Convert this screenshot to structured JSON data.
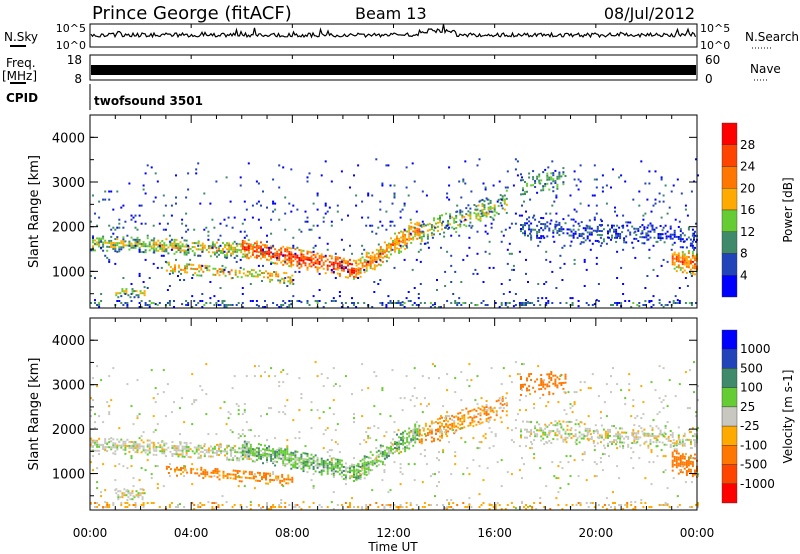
{
  "header": {
    "station": "Prince George (fitACF)",
    "beam": "Beam 13",
    "date": "08/Jul/2012"
  },
  "noise_panel": {
    "left_label": "N.Sky",
    "right_label": "N.Search",
    "left_ticks": [
      "10^5",
      "10^0"
    ],
    "right_ticks": [
      "10^5",
      "10^0"
    ]
  },
  "freq_panel": {
    "left_label": "Freq.",
    "left_unit": "[MHz]",
    "right_label": "Nave",
    "left_ticks": [
      "18",
      "8"
    ],
    "right_ticks": [
      "60",
      "0"
    ]
  },
  "cpid_panel": {
    "label": "CPID",
    "value": "twofsound 3501"
  },
  "chart_data": {
    "type": "heatmap",
    "xlabel": "Time UT",
    "x_ticks": [
      "00:00",
      "04:00",
      "08:00",
      "12:00",
      "16:00",
      "20:00",
      "00:00"
    ],
    "xlim_hours": [
      0,
      24
    ],
    "ylabel": "Slant Range [km]",
    "y_ticks": [
      1000,
      2000,
      3000,
      4000
    ],
    "ylim_km": [
      180,
      4500
    ],
    "panels": [
      {
        "name": "power",
        "colorbar_label": "Power [dB]",
        "colorbar_ticks": [
          "4",
          "8",
          "12",
          "16",
          "20",
          "24",
          "28"
        ],
        "bins": [
          0,
          4,
          8,
          12,
          16,
          20,
          24,
          28,
          32
        ],
        "colors": [
          "#0000ff",
          "#2244bb",
          "#3f8a6a",
          "#66cc33",
          "#ffaa00",
          "#ff7700",
          "#ff4400",
          "#ff0000"
        ]
      },
      {
        "name": "velocity",
        "colorbar_label": "Velocity [m s-1]",
        "colorbar_ticks": [
          "1000",
          "500",
          "100",
          "25",
          "-25",
          "-100",
          "-500",
          "-1000"
        ],
        "bins": [
          1500,
          1000,
          500,
          100,
          25,
          -25,
          -100,
          -500,
          -1000,
          -1500
        ],
        "colors": [
          "#0000ff",
          "#2244bb",
          "#3f8a6a",
          "#66cc33",
          "#c8c8c0",
          "#ffaa00",
          "#ff7700",
          "#ff4400",
          "#ff0000"
        ]
      }
    ],
    "scatter_regions": [
      {
        "t0": 0.0,
        "t1": 2.5,
        "r_start": 1450,
        "r_end": 1400,
        "width": 350,
        "density": 0.75,
        "power": 14,
        "velocity": 0
      },
      {
        "t0": 2.5,
        "t1": 6.5,
        "r_start": 1400,
        "r_end": 1250,
        "width": 350,
        "density": 0.7,
        "power": 16,
        "velocity": 0
      },
      {
        "t0": 6.0,
        "t1": 10.5,
        "r_start": 1300,
        "r_end": 800,
        "width": 450,
        "density": 0.85,
        "power": 25,
        "velocity": 60
      },
      {
        "t0": 3.0,
        "t1": 8.0,
        "r_start": 950,
        "r_end": 700,
        "width": 250,
        "density": 0.6,
        "power": 18,
        "velocity": -150
      },
      {
        "t0": 1.0,
        "t1": 2.2,
        "r_start": 400,
        "r_end": 400,
        "width": 250,
        "density": 0.6,
        "power": 14,
        "velocity": 0
      },
      {
        "t0": 10.5,
        "t1": 13.0,
        "r_start": 750,
        "r_end": 1700,
        "width": 500,
        "density": 0.8,
        "power": 20,
        "velocity": 60
      },
      {
        "t0": 13.0,
        "t1": 16.5,
        "r_start": 1550,
        "r_end": 2300,
        "width": 500,
        "density": 0.55,
        "power": 14,
        "velocity": -100
      },
      {
        "t0": 17.0,
        "t1": 24.0,
        "r_start": 1700,
        "r_end": 1500,
        "width": 500,
        "density": 0.45,
        "power": 6,
        "velocity": 0
      },
      {
        "t0": 17.0,
        "t1": 18.8,
        "r_start": 2700,
        "r_end": 2800,
        "width": 500,
        "density": 0.5,
        "power": 10,
        "velocity": -300
      },
      {
        "t0": 23.0,
        "t1": 24.0,
        "r_start": 1000,
        "r_end": 900,
        "width": 500,
        "density": 0.8,
        "power": 22,
        "velocity": -300
      },
      {
        "t0": 0.0,
        "t1": 24.0,
        "r_start": 200,
        "r_end": 200,
        "width": 3300,
        "density": 0.05,
        "power": 5,
        "velocity": 0
      },
      {
        "t0": 0.0,
        "t1": 24.0,
        "r_start": 180,
        "r_end": 180,
        "width": 150,
        "density": 0.35,
        "power": 8,
        "velocity": -50
      }
    ]
  }
}
